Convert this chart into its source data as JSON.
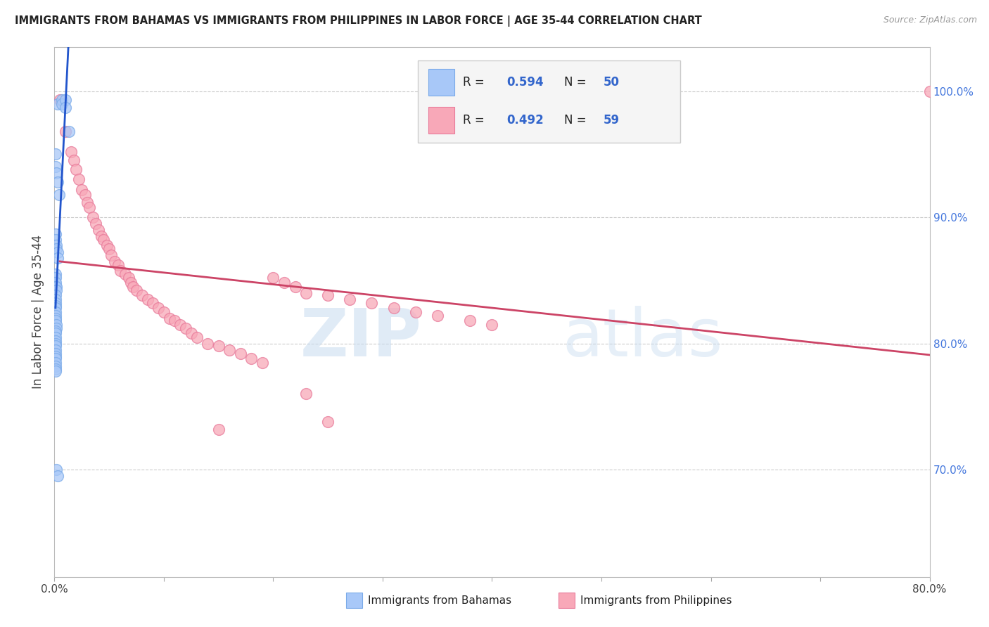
{
  "title": "IMMIGRANTS FROM BAHAMAS VS IMMIGRANTS FROM PHILIPPINES IN LABOR FORCE | AGE 35-44 CORRELATION CHART",
  "source": "Source: ZipAtlas.com",
  "ylabel": "In Labor Force | Age 35-44",
  "right_ytick_labels": [
    "70.0%",
    "80.0%",
    "90.0%",
    "100.0%"
  ],
  "right_ytick_vals": [
    0.7,
    0.8,
    0.9,
    1.0
  ],
  "xlim": [
    0.0,
    0.8
  ],
  "ylim": [
    0.615,
    1.035
  ],
  "bahamas_R": 0.594,
  "bahamas_N": 50,
  "philippines_R": 0.492,
  "philippines_N": 59,
  "bahamas_color": "#a8c8f8",
  "bahamas_edge_color": "#7aaae8",
  "bahamas_line_color": "#2255cc",
  "philippines_color": "#f8a8b8",
  "philippines_edge_color": "#e87a9a",
  "philippines_line_color": "#cc4466",
  "background_color": "#ffffff",
  "watermark_text": "ZIPatlas",
  "bahamas_x": [
    0.003,
    0.007,
    0.007,
    0.01,
    0.01,
    0.013,
    0.001,
    0.001,
    0.002,
    0.003,
    0.004,
    0.001,
    0.001,
    0.002,
    0.002,
    0.003,
    0.003,
    0.001,
    0.001,
    0.001,
    0.001,
    0.002,
    0.002,
    0.001,
    0.001,
    0.001,
    0.001,
    0.001,
    0.001,
    0.001,
    0.001,
    0.001,
    0.002,
    0.002,
    0.001,
    0.001,
    0.001,
    0.001,
    0.001,
    0.001,
    0.001,
    0.001,
    0.001,
    0.001,
    0.001,
    0.001,
    0.001,
    0.001,
    0.002,
    0.003
  ],
  "bahamas_y": [
    0.99,
    0.993,
    0.99,
    0.993,
    0.987,
    0.968,
    0.95,
    0.94,
    0.935,
    0.928,
    0.918,
    0.887,
    0.882,
    0.878,
    0.875,
    0.872,
    0.868,
    0.855,
    0.852,
    0.848,
    0.845,
    0.845,
    0.842,
    0.838,
    0.835,
    0.832,
    0.83,
    0.828,
    0.825,
    0.822,
    0.82,
    0.818,
    0.815,
    0.812,
    0.81,
    0.808,
    0.805,
    0.802,
    0.8,
    0.798,
    0.795,
    0.792,
    0.79,
    0.788,
    0.785,
    0.782,
    0.78,
    0.778,
    0.7,
    0.695
  ],
  "philippines_x": [
    0.005,
    0.01,
    0.015,
    0.018,
    0.02,
    0.022,
    0.025,
    0.028,
    0.03,
    0.032,
    0.035,
    0.038,
    0.04,
    0.043,
    0.045,
    0.048,
    0.05,
    0.052,
    0.055,
    0.058,
    0.06,
    0.065,
    0.068,
    0.07,
    0.072,
    0.075,
    0.08,
    0.085,
    0.09,
    0.095,
    0.1,
    0.105,
    0.11,
    0.115,
    0.12,
    0.125,
    0.13,
    0.14,
    0.15,
    0.16,
    0.17,
    0.18,
    0.19,
    0.2,
    0.21,
    0.22,
    0.23,
    0.25,
    0.27,
    0.29,
    0.31,
    0.33,
    0.35,
    0.38,
    0.4,
    0.23,
    0.25,
    0.8,
    0.15
  ],
  "philippines_y": [
    0.993,
    0.968,
    0.952,
    0.945,
    0.938,
    0.93,
    0.922,
    0.918,
    0.912,
    0.908,
    0.9,
    0.895,
    0.89,
    0.885,
    0.882,
    0.878,
    0.875,
    0.87,
    0.865,
    0.862,
    0.858,
    0.855,
    0.852,
    0.848,
    0.845,
    0.842,
    0.838,
    0.835,
    0.832,
    0.828,
    0.825,
    0.82,
    0.818,
    0.815,
    0.812,
    0.808,
    0.805,
    0.8,
    0.798,
    0.795,
    0.792,
    0.788,
    0.785,
    0.852,
    0.848,
    0.845,
    0.84,
    0.838,
    0.835,
    0.832,
    0.828,
    0.825,
    0.822,
    0.818,
    0.815,
    0.76,
    0.738,
    1.0,
    0.732
  ]
}
